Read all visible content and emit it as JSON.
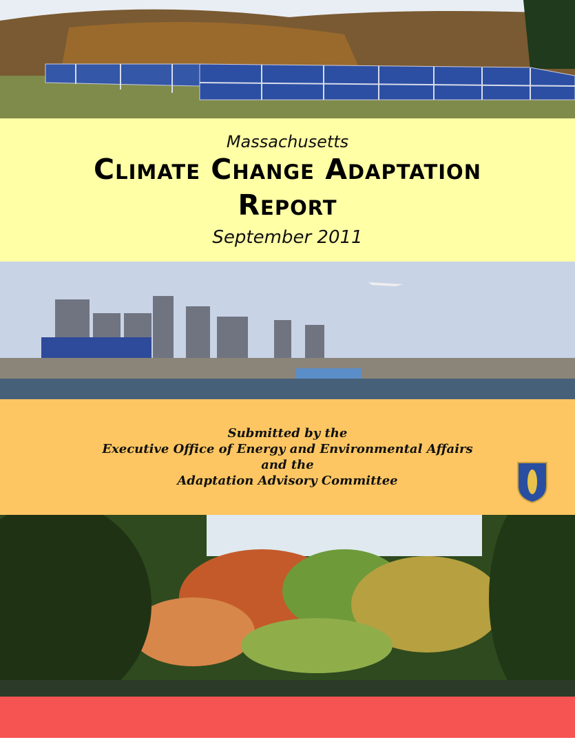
{
  "header": {
    "subtitle": "Massachusetts",
    "title_line1": "Climate Change Adaptation",
    "title_line2": "Report",
    "date": "September 2011"
  },
  "submission": {
    "lines": [
      "Submitted by the",
      "Executive Office of Energy and Environmental Affairs",
      "and the",
      "Adaptation Advisory Committee"
    ]
  }
}
